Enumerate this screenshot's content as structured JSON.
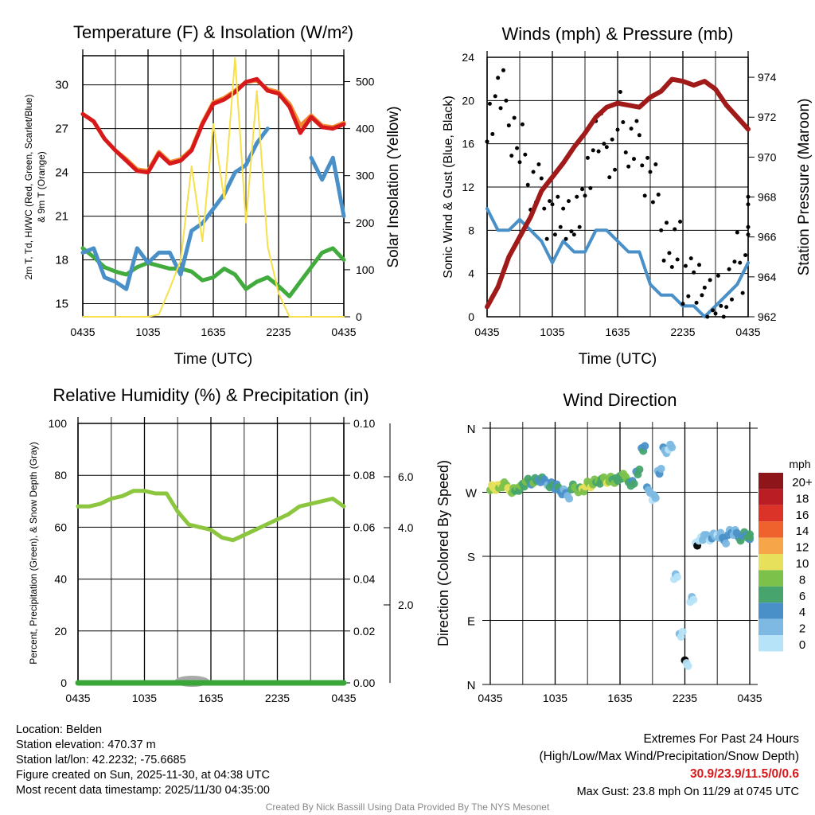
{
  "chart_data": [
    {
      "type": "line",
      "title": "Temperature (F) & Insolation (W/m²)",
      "xlabel": "Time (UTC)",
      "ylabel": "2m T, Td, HI/WC (Red, Green, Scarlet/Blue) & 9m T (Orange)",
      "ylabel2": "Solar Insolation (Yellow)",
      "xticks": [
        "0435",
        "1035",
        "1635",
        "2235",
        "0435"
      ],
      "yticks": [
        15,
        18,
        21,
        24,
        27,
        30
      ],
      "yticks2": [
        0,
        100,
        200,
        300,
        400,
        500
      ],
      "ylim": [
        14.1,
        32
      ],
      "ylim2": [
        0,
        555
      ],
      "x_hours": 24,
      "series": [
        {
          "name": "9m T",
          "color": "#f28a30",
          "values": [
            28,
            27.5,
            26.3,
            25.5,
            24.9,
            24.2,
            24.1,
            25.4,
            24.7,
            24.9,
            25.6,
            27.4,
            28.8,
            29.1,
            29.6,
            30.2,
            30.3,
            29.7,
            29.5,
            28.7,
            27.2,
            27.9,
            27.2,
            27.1,
            27.4
          ]
        },
        {
          "name": "2m T",
          "color": "#d7191c",
          "values": [
            28,
            27.5,
            26.3,
            25.5,
            24.8,
            24.1,
            24,
            25.3,
            24.6,
            24.8,
            25.5,
            27.3,
            28.7,
            29,
            29.5,
            30.2,
            30.4,
            29.6,
            29.4,
            28.5,
            26.7,
            27.8,
            27.1,
            27,
            27.3
          ]
        },
        {
          "name": "Td",
          "color": "#41ab3d",
          "values": [
            18.8,
            18.2,
            17.5,
            17.2,
            17,
            17.5,
            17.8,
            17.6,
            17.4,
            17.4,
            17.2,
            16.6,
            16.8,
            17.4,
            17,
            16,
            16.5,
            16.8,
            16.2,
            15.5,
            16.5,
            17.5,
            18.5,
            18.8,
            18
          ]
        },
        {
          "name": "HI/WC",
          "color": "#4a90c8",
          "values": [
            18.5,
            18.8,
            16.8,
            16.5,
            16,
            18.8,
            17.8,
            18.5,
            18.5,
            17,
            20,
            20.5,
            21.5,
            22.5,
            24,
            24.5,
            26,
            27,
            null,
            26.5,
            null,
            25,
            23.5,
            25,
            21
          ]
        },
        {
          "name": "Solar",
          "color": "#f7e04a",
          "axis": "right",
          "values": [
            0,
            0,
            0,
            0,
            0,
            0,
            0,
            5,
            60,
            120,
            320,
            160,
            410,
            250,
            550,
            200,
            480,
            150,
            50,
            0,
            0,
            0,
            0,
            0,
            0
          ]
        }
      ]
    },
    {
      "type": "line",
      "title": "Winds (mph) & Pressure (mb)",
      "xlabel": "Time (UTC)",
      "ylabel": "Sonic Wind & Gust (Blue, Black)",
      "ylabel2": "Station Pressure (Maroon)",
      "xticks": [
        "0435",
        "1035",
        "1635",
        "2235",
        "0435"
      ],
      "yticks": [
        0,
        4,
        8,
        12,
        16,
        20,
        24
      ],
      "yticks2": [
        962,
        964,
        966,
        968,
        970,
        972,
        974
      ],
      "ylim": [
        0,
        24
      ],
      "ylim2": [
        962,
        975
      ],
      "x_hours": 24,
      "series": [
        {
          "name": "Wind",
          "color": "#4a90c8",
          "values": [
            10,
            8,
            8,
            9,
            8,
            7,
            5,
            7,
            6,
            6,
            8,
            8,
            7,
            6,
            6,
            3,
            2,
            2,
            1,
            1,
            0,
            1,
            2,
            3,
            5
          ]
        },
        {
          "name": "Gust",
          "color": "#000000",
          "values": [
            19,
            20,
            17,
            15,
            12,
            10,
            9,
            10,
            9,
            14,
            16,
            15,
            18,
            16,
            14,
            12,
            8,
            6,
            4,
            2,
            2,
            1,
            3,
            5,
            9
          ]
        },
        {
          "name": "Pressure",
          "color": "#a01a1a",
          "axis": "right",
          "values": [
            962.5,
            963.5,
            965,
            966,
            967,
            968.3,
            969,
            969.7,
            970.5,
            971.2,
            972,
            972.5,
            972.7,
            972.6,
            972.5,
            973,
            973.3,
            973.9,
            973.8,
            973.6,
            973.8,
            973.4,
            972.6,
            972,
            971.4
          ]
        }
      ]
    },
    {
      "type": "line",
      "title": "Relative Humidity (%) & Precipitation (in)",
      "ylabel": "Percent, Precipitation (Green), & Snow Depth (Gray)",
      "xticks": [
        "0435",
        "1035",
        "1635",
        "2235",
        "0435"
      ],
      "yticks": [
        0,
        20,
        40,
        60,
        80,
        100
      ],
      "yticks2": [
        "0.00",
        "0.02",
        "0.04",
        "0.06",
        "0.08",
        "0.10"
      ],
      "yticks3": [
        "2.0",
        "4.0",
        "6.0"
      ],
      "ylim": [
        0,
        100
      ],
      "ylim2": [
        0,
        0.1
      ],
      "x_hours": 24,
      "series": [
        {
          "name": "RH",
          "color": "#8cc63f",
          "values": [
            68,
            68,
            69,
            71,
            72,
            74,
            74,
            73,
            73,
            66,
            61,
            60,
            59,
            56,
            55,
            57,
            59,
            61,
            63,
            65,
            68,
            69,
            70,
            71,
            68
          ]
        },
        {
          "name": "Precipitation",
          "color": "#3aa63a",
          "values": [
            0,
            0,
            0,
            0,
            0,
            0,
            0,
            0,
            0,
            0,
            0,
            0,
            0,
            0,
            0,
            0,
            0,
            0,
            0,
            0,
            0,
            0,
            0,
            0,
            0
          ]
        }
      ]
    },
    {
      "type": "scatter",
      "title": "Wind Direction",
      "ylabel": "Direction (Colored By Speed)",
      "xticks": [
        "0435",
        "1035",
        "1635",
        "2235",
        "0435"
      ],
      "yticks": [
        "N",
        "E",
        "S",
        "W",
        "N"
      ],
      "ylim": [
        0,
        360
      ],
      "x_hours": 24,
      "colorbar": {
        "title": "mph",
        "labels": [
          "20+",
          "18",
          "16",
          "14",
          "12",
          "10",
          "8",
          "6",
          "4",
          "2",
          "0"
        ],
        "colors": [
          "#8e1519",
          "#bb1d24",
          "#dc3328",
          "#f0622d",
          "#f6a649",
          "#e6e05a",
          "#7bc14a",
          "#46a46c",
          "#4a90c8",
          "#7db9e2",
          "#b6e3f7"
        ]
      },
      "points": {
        "hours": [
          0,
          0.5,
          1,
          1.5,
          2,
          2.5,
          3,
          3.5,
          4,
          4.5,
          5,
          5.5,
          6,
          6.5,
          7,
          7.5,
          8,
          8.5,
          9,
          9.5,
          10,
          10.5,
          11,
          11.5,
          12,
          12.5,
          13,
          13.5,
          14,
          14.5,
          15,
          15.5,
          16,
          16.5,
          17,
          17.5,
          18,
          18.5,
          19,
          19.5,
          20,
          20.5,
          21,
          21.5,
          22,
          22.5,
          23,
          23.5,
          24
        ],
        "direction": [
          278,
          275,
          280,
          276,
          273,
          277,
          280,
          284,
          286,
          288,
          285,
          282,
          276,
          270,
          265,
          278,
          275,
          273,
          280,
          284,
          286,
          288,
          290,
          285,
          292,
          288,
          283,
          300,
          330,
          272,
          262,
          300,
          330,
          335,
          150,
          70,
          30,
          120,
          200,
          205,
          205,
          208,
          210,
          203,
          215,
          212,
          205,
          210,
          208
        ],
        "speed": [
          10,
          10,
          9,
          10,
          8,
          8,
          7,
          6,
          7,
          5,
          4,
          6,
          5,
          4,
          3,
          7,
          8,
          10,
          9,
          8,
          7,
          9,
          8,
          7,
          7,
          8,
          6,
          6,
          5,
          3,
          2,
          3,
          3,
          2,
          1,
          1,
          0,
          1,
          0,
          2,
          2,
          3,
          2,
          4,
          4,
          3,
          5,
          6,
          6
        ]
      }
    }
  ],
  "info": {
    "location": "Location: Belden",
    "elevation": "Station elevation: 470.37 m",
    "latlon": "Station lat/lon: 42.2232; -75.6685",
    "created": "Figure created on Sun, 2025-11-30, at 04:38 UTC",
    "recent": "Most recent data timestamp: 2025/11/30 04:35:00"
  },
  "extremes": {
    "title": "Extremes For Past 24 Hours",
    "subtitle": "(High/Low/Max Wind/Precipitation/Snow Depth)",
    "values": "30.9/23.9/11.5/0/0.6",
    "gust": "Max Gust: 23.8 mph On 11/29 at 0745 UTC",
    "value_color": "#d7191c"
  },
  "credit": "Created By Nick Bassill Using Data Provided By The NYS Mesonet"
}
